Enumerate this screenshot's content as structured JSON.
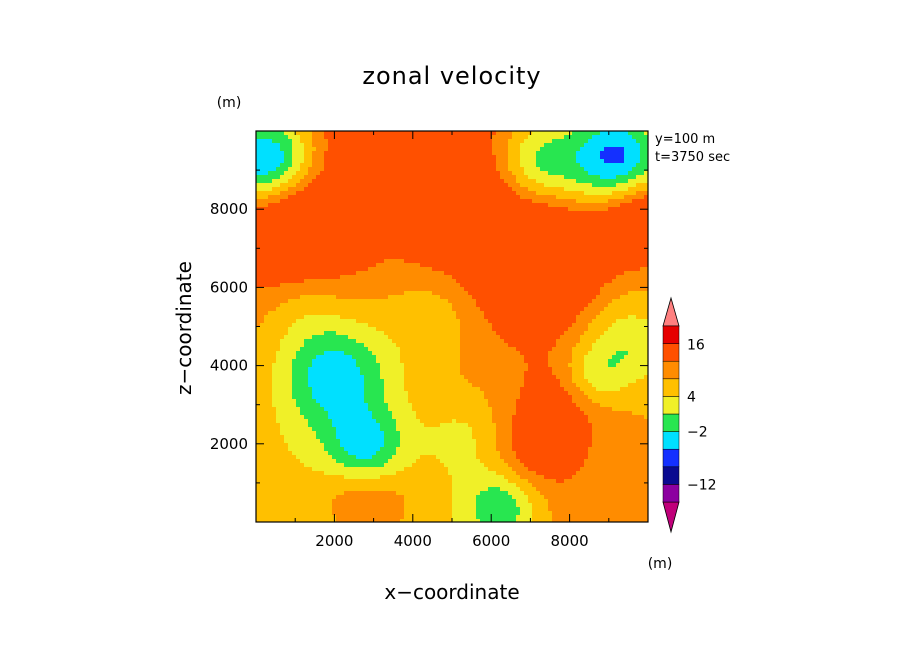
{
  "chart_data": {
    "type": "heatmap",
    "title": "zonal velocity",
    "xlabel": "x−coordinate",
    "ylabel": "z−coordinate",
    "y_unit": "(m)",
    "x_unit": "(m)",
    "xlim": [
      0,
      10000
    ],
    "ylim": [
      0,
      10000
    ],
    "x_ticks": [
      2000,
      4000,
      6000,
      8000
    ],
    "y_ticks": [
      2000,
      4000,
      6000,
      8000
    ],
    "x_tick_labels": [
      "2000",
      "4000",
      "6000",
      "8000"
    ],
    "y_tick_labels": [
      "2000",
      "4000",
      "6000",
      "8000"
    ],
    "annotations": [
      "y=100 m",
      "t=3750 sec"
    ],
    "colorbar": {
      "labels": [
        "16",
        "4",
        "−2",
        "−12"
      ],
      "colors": [
        "#c0007a",
        "#8c00a0",
        "#0a0a90",
        "#1430ff",
        "#00e0ff",
        "#28e650",
        "#f0f028",
        "#ffc000",
        "#ff8c00",
        "#ff5000",
        "#e60000",
        "#ff8080"
      ]
    },
    "grid": false,
    "note_levels": "colour index 0..11 corresponds to colorbar.colors (negative to positive velocity)"
  }
}
